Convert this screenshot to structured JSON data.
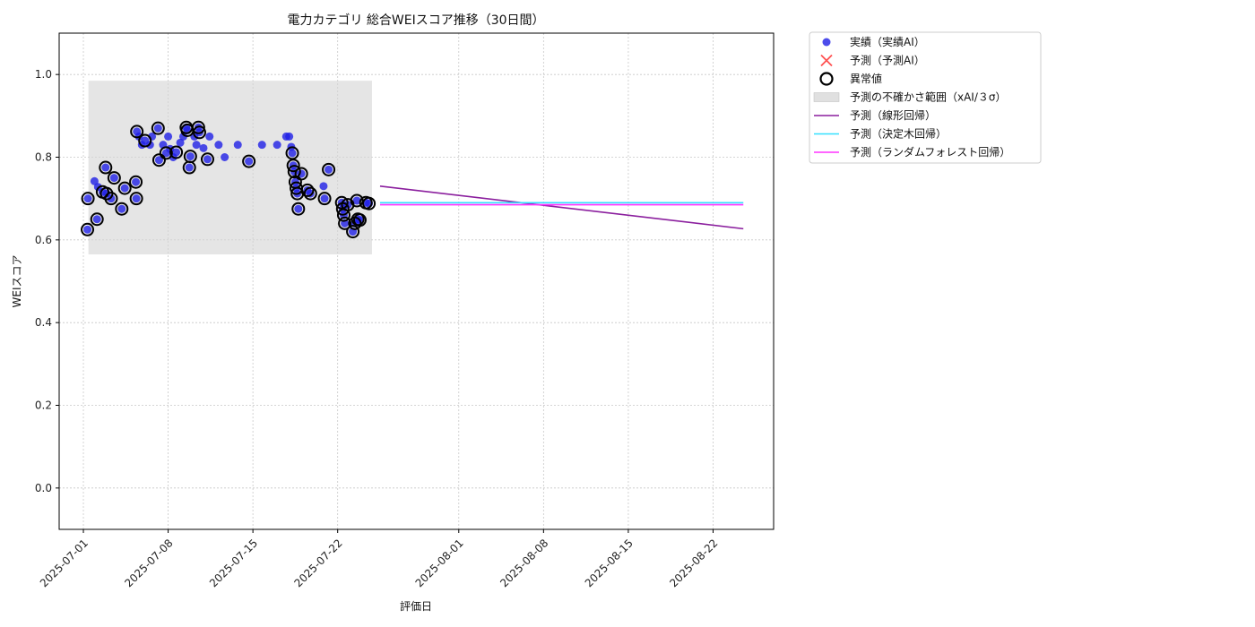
{
  "chart_data": {
    "type": "scatter",
    "title": "電力カテゴリ 総合WEIスコア推移（30日間）",
    "xlabel": "評価日",
    "ylabel": "WEIスコア",
    "ylim": [
      -0.1,
      1.1
    ],
    "yticks": [
      0.0,
      0.2,
      0.4,
      0.6,
      0.8,
      1.0
    ],
    "ytick_labels": [
      "0.0",
      "0.2",
      "0.4",
      "0.6",
      "0.8",
      "1.0"
    ],
    "xlim": [
      "2025-06-29",
      "2025-08-27"
    ],
    "xticks": [
      "2025-07-01",
      "2025-07-08",
      "2025-07-15",
      "2025-07-22",
      "2025-08-01",
      "2025-08-08",
      "2025-08-15",
      "2025-08-22"
    ],
    "grid": true,
    "legend_position": "outside-top-right",
    "colors": {
      "actual": "#1f1fe6",
      "predicted": "#ff3333",
      "anomaly": "#000000",
      "band": "#d3d3d3",
      "linear": "#8b1f9e",
      "tree": "#33e0ff",
      "forest": "#ff33ff"
    },
    "legend": [
      {
        "key": "actual",
        "label": "実績（実績AI）"
      },
      {
        "key": "predicted",
        "label": "予測（予測AI）"
      },
      {
        "key": "anomaly",
        "label": "異常値"
      },
      {
        "key": "band",
        "label": "予測の不確かさ範囲（xAI/３σ）"
      },
      {
        "key": "linear",
        "label": "予測（線形回帰）"
      },
      {
        "key": "tree",
        "label": "予測（決定木回帰）"
      },
      {
        "key": "forest",
        "label": "予測（ランダムフォレスト回帰）"
      }
    ],
    "uncertainty_band": {
      "x_start": "2025-07-01T10:00",
      "x_end": "2025-07-24T20:00",
      "y_low": 0.565,
      "y_high": 0.985
    },
    "actual": [
      {
        "x": "2025-07-01T08:00",
        "y": 0.625,
        "anomaly": true
      },
      {
        "x": "2025-07-01T09:00",
        "y": 0.7,
        "anomaly": true
      },
      {
        "x": "2025-07-01T22:00",
        "y": 0.742,
        "anomaly": false
      },
      {
        "x": "2025-07-02T03:00",
        "y": 0.65,
        "anomaly": true
      },
      {
        "x": "2025-07-02T05:00",
        "y": 0.728,
        "anomaly": false
      },
      {
        "x": "2025-07-02T14:00",
        "y": 0.716,
        "anomaly": true
      },
      {
        "x": "2025-07-02T20:00",
        "y": 0.775,
        "anomaly": true
      },
      {
        "x": "2025-07-02T22:00",
        "y": 0.712,
        "anomaly": true
      },
      {
        "x": "2025-07-03T07:00",
        "y": 0.7,
        "anomaly": true
      },
      {
        "x": "2025-07-03T13:00",
        "y": 0.75,
        "anomaly": true
      },
      {
        "x": "2025-07-04T04:00",
        "y": 0.675,
        "anomaly": true
      },
      {
        "x": "2025-07-04T10:00",
        "y": 0.725,
        "anomaly": true
      },
      {
        "x": "2025-07-05T08:00",
        "y": 0.74,
        "anomaly": true
      },
      {
        "x": "2025-07-05T09:00",
        "y": 0.7,
        "anomaly": true
      },
      {
        "x": "2025-07-05T10:00",
        "y": 0.862,
        "anomaly": true
      },
      {
        "x": "2025-07-05T14:00",
        "y": 0.85,
        "anomaly": false
      },
      {
        "x": "2025-07-05T20:00",
        "y": 0.83,
        "anomaly": false
      },
      {
        "x": "2025-07-06T02:00",
        "y": 0.84,
        "anomaly": true
      },
      {
        "x": "2025-07-06T12:00",
        "y": 0.83,
        "anomaly": false
      },
      {
        "x": "2025-07-06T16:00",
        "y": 0.85,
        "anomaly": false
      },
      {
        "x": "2025-07-07T04:00",
        "y": 0.87,
        "anomaly": true
      },
      {
        "x": "2025-07-07T06:00",
        "y": 0.793,
        "anomaly": true
      },
      {
        "x": "2025-07-07T14:00",
        "y": 0.83,
        "anomaly": false
      },
      {
        "x": "2025-07-07T20:00",
        "y": 0.81,
        "anomaly": true
      },
      {
        "x": "2025-07-08T00:00",
        "y": 0.85,
        "anomaly": false
      },
      {
        "x": "2025-07-08T04:00",
        "y": 0.82,
        "anomaly": false
      },
      {
        "x": "2025-07-08T10:00",
        "y": 0.8,
        "anomaly": false
      },
      {
        "x": "2025-07-08T16:00",
        "y": 0.812,
        "anomaly": true
      },
      {
        "x": "2025-07-09T00:00",
        "y": 0.835,
        "anomaly": false
      },
      {
        "x": "2025-07-09T06:00",
        "y": 0.85,
        "anomaly": false
      },
      {
        "x": "2025-07-09T12:00",
        "y": 0.872,
        "anomaly": true
      },
      {
        "x": "2025-07-09T14:00",
        "y": 0.865,
        "anomaly": true
      },
      {
        "x": "2025-07-09T18:00",
        "y": 0.775,
        "anomaly": true
      },
      {
        "x": "2025-07-09T20:00",
        "y": 0.802,
        "anomaly": true
      },
      {
        "x": "2025-07-10T04:00",
        "y": 0.85,
        "anomaly": false
      },
      {
        "x": "2025-07-10T08:00",
        "y": 0.83,
        "anomaly": false
      },
      {
        "x": "2025-07-10T12:00",
        "y": 0.872,
        "anomaly": true
      },
      {
        "x": "2025-07-10T14:00",
        "y": 0.86,
        "anomaly": true
      },
      {
        "x": "2025-07-10T22:00",
        "y": 0.822,
        "anomaly": false
      },
      {
        "x": "2025-07-11T06:00",
        "y": 0.795,
        "anomaly": true
      },
      {
        "x": "2025-07-11T10:00",
        "y": 0.85,
        "anomaly": false
      },
      {
        "x": "2025-07-12T04:00",
        "y": 0.83,
        "anomaly": false
      },
      {
        "x": "2025-07-12T16:00",
        "y": 0.8,
        "anomaly": false
      },
      {
        "x": "2025-07-13T18:00",
        "y": 0.83,
        "anomaly": false
      },
      {
        "x": "2025-07-14T16:00",
        "y": 0.79,
        "anomaly": true
      },
      {
        "x": "2025-07-15T18:00",
        "y": 0.83,
        "anomaly": false
      },
      {
        "x": "2025-07-17T00:00",
        "y": 0.83,
        "anomaly": false
      },
      {
        "x": "2025-07-17T18:00",
        "y": 0.85,
        "anomaly": false
      },
      {
        "x": "2025-07-18T00:00",
        "y": 0.85,
        "anomaly": false
      },
      {
        "x": "2025-07-18T04:00",
        "y": 0.825,
        "anomaly": false
      },
      {
        "x": "2025-07-18T06:00",
        "y": 0.81,
        "anomaly": true
      },
      {
        "x": "2025-07-18T08:00",
        "y": 0.78,
        "anomaly": true
      },
      {
        "x": "2025-07-18T10:00",
        "y": 0.765,
        "anomaly": true
      },
      {
        "x": "2025-07-18T12:00",
        "y": 0.74,
        "anomaly": true
      },
      {
        "x": "2025-07-18T14:00",
        "y": 0.725,
        "anomaly": true
      },
      {
        "x": "2025-07-18T16:00",
        "y": 0.712,
        "anomaly": true
      },
      {
        "x": "2025-07-18T18:00",
        "y": 0.675,
        "anomaly": true
      },
      {
        "x": "2025-07-19T00:00",
        "y": 0.76,
        "anomaly": true
      },
      {
        "x": "2025-07-19T12:00",
        "y": 0.72,
        "anomaly": true
      },
      {
        "x": "2025-07-19T18:00",
        "y": 0.712,
        "anomaly": true
      },
      {
        "x": "2025-07-20T20:00",
        "y": 0.73,
        "anomaly": false
      },
      {
        "x": "2025-07-20T22:00",
        "y": 0.7,
        "anomaly": true
      },
      {
        "x": "2025-07-21T06:00",
        "y": 0.77,
        "anomaly": true
      },
      {
        "x": "2025-07-22T08:00",
        "y": 0.69,
        "anomaly": true
      },
      {
        "x": "2025-07-22T10:00",
        "y": 0.675,
        "anomaly": true
      },
      {
        "x": "2025-07-22T12:00",
        "y": 0.66,
        "anomaly": true
      },
      {
        "x": "2025-07-22T14:00",
        "y": 0.64,
        "anomaly": true
      },
      {
        "x": "2025-07-22T20:00",
        "y": 0.685,
        "anomaly": true
      },
      {
        "x": "2025-07-23T06:00",
        "y": 0.62,
        "anomaly": true
      },
      {
        "x": "2025-07-23T10:00",
        "y": 0.64,
        "anomaly": true
      },
      {
        "x": "2025-07-23T14:00",
        "y": 0.695,
        "anomaly": true
      },
      {
        "x": "2025-07-23T16:00",
        "y": 0.65,
        "anomaly": true
      },
      {
        "x": "2025-07-23T20:00",
        "y": 0.648,
        "anomaly": true
      },
      {
        "x": "2025-07-24T08:00",
        "y": 0.69,
        "anomaly": true
      },
      {
        "x": "2025-07-24T14:00",
        "y": 0.688,
        "anomaly": true
      }
    ],
    "forecast_lines": [
      {
        "key": "linear",
        "x": [
          "2025-07-25T12:00",
          "2025-08-24T12:00"
        ],
        "y": [
          0.73,
          0.627
        ]
      },
      {
        "key": "tree",
        "x": [
          "2025-07-25T12:00",
          "2025-08-24T12:00"
        ],
        "y": [
          0.69,
          0.69
        ]
      },
      {
        "key": "forest",
        "x": [
          "2025-07-25T12:00",
          "2025-08-24T12:00"
        ],
        "y": [
          0.685,
          0.685
        ]
      }
    ]
  }
}
